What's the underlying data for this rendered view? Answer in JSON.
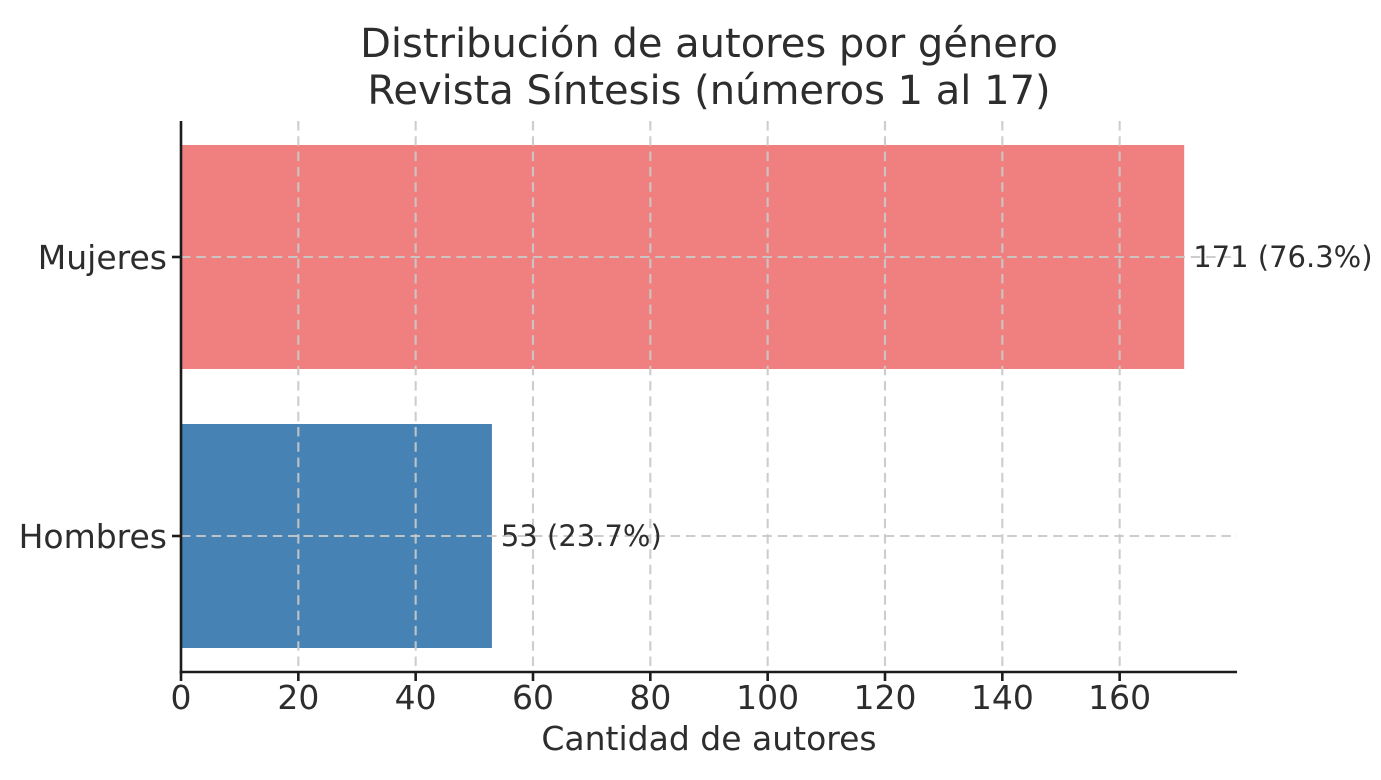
{
  "title": {
    "line1": "Distribución de autores por género",
    "line2": "Revista Síntesis (números 1 al 17)"
  },
  "chart_data": {
    "type": "bar",
    "orientation": "horizontal",
    "title": "Distribución de autores por género\nRevista Síntesis (números 1 al 17)",
    "categories": [
      "Mujeres",
      "Hombres"
    ],
    "values": [
      171,
      53
    ],
    "percentages": [
      76.3,
      23.7
    ],
    "bar_labels": [
      "171 (76.3%)",
      "53 (23.7%)"
    ],
    "bar_colors": [
      "#f08080",
      "#4682b4"
    ],
    "xlabel": "Cantidad de autores",
    "ylabel": "",
    "xticks": [
      0,
      20,
      40,
      60,
      80,
      100,
      120,
      140,
      160
    ],
    "xlim": [
      0,
      180
    ],
    "grid": "dashed, drawn above bars",
    "legend": "none"
  },
  "colors": {
    "bar_mujeres": "#f08080",
    "bar_hombres": "#4682b4",
    "grid": "#c9c9c9",
    "axis": "#1c1c1c",
    "text": "#2d2d2d",
    "title": "#373737",
    "background": "#ffffff"
  }
}
